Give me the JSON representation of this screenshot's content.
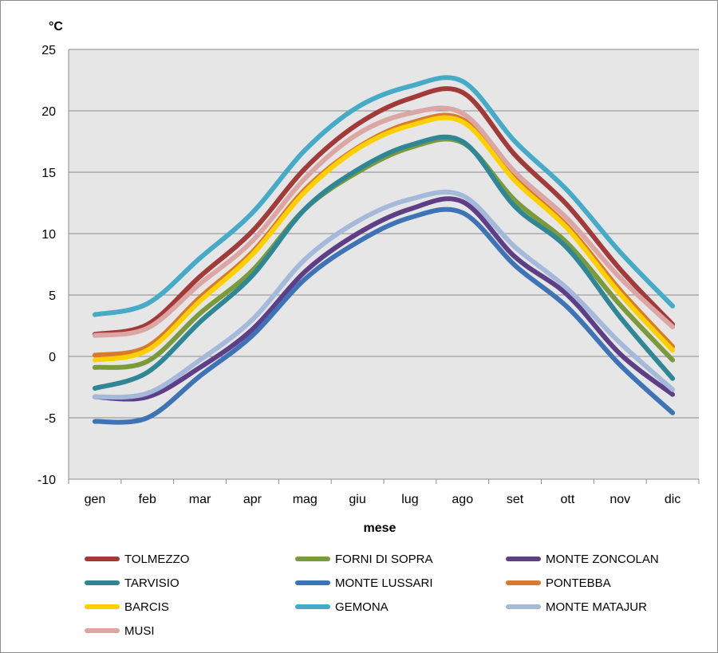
{
  "chart_data": {
    "type": "line",
    "smooth": true,
    "title": "",
    "xlabel": "mese",
    "ylabel": "°C",
    "ylim": [
      -10,
      25
    ],
    "ytick_step": 5,
    "yticks": [
      "-10",
      "-5",
      "0",
      "5",
      "10",
      "15",
      "20",
      "25"
    ],
    "grid": true,
    "legend_position": "bottom",
    "plot_background": "#e6e6e6",
    "categories": [
      "gen",
      "feb",
      "mar",
      "apr",
      "mag",
      "giu",
      "lug",
      "ago",
      "set",
      "ott",
      "nov",
      "dic"
    ],
    "series": [
      {
        "name": "TOLMEZZO",
        "color": "#a33a3a",
        "values": [
          1.8,
          2.6,
          6.5,
          10.2,
          15.3,
          18.9,
          21.0,
          21.5,
          16.4,
          12.3,
          7.1,
          2.6
        ]
      },
      {
        "name": "FORNI DI SOPRA",
        "color": "#7a9a3c",
        "values": [
          -0.9,
          -0.4,
          3.5,
          7.0,
          12.0,
          15.0,
          17.0,
          17.4,
          12.7,
          9.2,
          4.2,
          -0.3
        ]
      },
      {
        "name": "MONTE ZONCOLAN",
        "color": "#5e3f87",
        "values": [
          -3.3,
          -3.3,
          -0.9,
          2.2,
          6.9,
          10.0,
          12.0,
          12.6,
          8.1,
          5.0,
          0.2,
          -3.1
        ]
      },
      {
        "name": "TARVISIO",
        "color": "#2f8796",
        "values": [
          -2.6,
          -1.3,
          2.8,
          6.6,
          12.0,
          15.2,
          17.2,
          17.5,
          12.2,
          8.8,
          3.2,
          -1.8
        ]
      },
      {
        "name": "MONTE LUSSARI",
        "color": "#3e74b6",
        "values": [
          -5.3,
          -5.0,
          -1.6,
          1.7,
          6.3,
          9.3,
          11.3,
          11.7,
          7.4,
          4.0,
          -0.7,
          -4.6
        ]
      },
      {
        "name": "PONTEBBA",
        "color": "#d97b2c",
        "values": [
          0.1,
          0.8,
          4.8,
          8.5,
          13.6,
          17.0,
          19.0,
          19.3,
          14.5,
          10.6,
          5.4,
          0.8
        ]
      },
      {
        "name": "BARCIS",
        "color": "#ffd000",
        "values": [
          -0.3,
          0.5,
          4.5,
          8.3,
          13.4,
          16.9,
          18.8,
          19.1,
          14.3,
          10.4,
          5.1,
          0.5
        ]
      },
      {
        "name": "GEMONA",
        "color": "#46abc7",
        "values": [
          3.4,
          4.3,
          8.0,
          11.7,
          16.8,
          20.3,
          22.0,
          22.4,
          17.5,
          13.5,
          8.5,
          4.1
        ]
      },
      {
        "name": "MONTE MATAJUR",
        "color": "#a5b9da",
        "values": [
          -3.3,
          -3.0,
          -0.3,
          3.0,
          7.9,
          11.0,
          12.8,
          13.1,
          8.9,
          5.5,
          1.1,
          -2.7
        ]
      },
      {
        "name": "MUSI",
        "color": "#dba6a4",
        "values": [
          1.7,
          2.3,
          5.9,
          9.4,
          14.5,
          18.1,
          19.8,
          19.8,
          15.0,
          11.2,
          6.4,
          2.4
        ]
      }
    ]
  }
}
